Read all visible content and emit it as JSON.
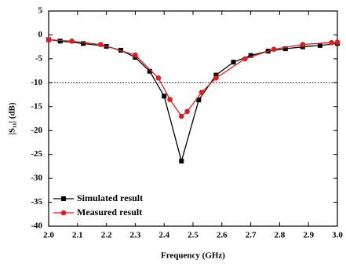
{
  "chart_data": {
    "type": "line",
    "xlabel": "Frequency (GHz)",
    "ylabel": "|S₁₁| (dB)",
    "xlim": [
      2.0,
      3.0
    ],
    "xticks": [
      {
        "value": 2.0,
        "label": "2.0"
      },
      2.1,
      2.2,
      2.3,
      2.4,
      2.5,
      2.6,
      2.7,
      2.8,
      2.9,
      {
        "value": 3.0,
        "label": "3.0"
      }
    ],
    "ylim": [
      -40,
      5
    ],
    "yticks": [
      -40,
      -35,
      -30,
      -25,
      -20,
      -15,
      -10,
      -5,
      0,
      5
    ],
    "reference_line": -10,
    "legend": "lower-left",
    "series": [
      {
        "name": "Simulated result",
        "color": "#000000",
        "marker": "square",
        "x": [
          2.0,
          2.04,
          2.12,
          2.2,
          2.25,
          2.3,
          2.35,
          2.4,
          2.46,
          2.52,
          2.58,
          2.64,
          2.7,
          2.76,
          2.82,
          2.88,
          2.94,
          3.0
        ],
        "values": [
          -1.0,
          -1.3,
          -1.8,
          -2.4,
          -3.2,
          -4.7,
          -7.6,
          -12.8,
          -26.4,
          -13.6,
          -8.4,
          -5.7,
          -4.3,
          -3.4,
          -2.9,
          -2.5,
          -2.2,
          -1.8
        ]
      },
      {
        "name": "Measured result",
        "color": "#e41a1c",
        "marker": "circle",
        "x": [
          2.0,
          2.08,
          2.18,
          2.3,
          2.38,
          2.42,
          2.46,
          2.48,
          2.53,
          2.58,
          2.68,
          2.78,
          2.88,
          2.98,
          3.0
        ],
        "values": [
          -1.0,
          -1.3,
          -2.0,
          -4.2,
          -9.0,
          -13.5,
          -17.0,
          -16.0,
          -12.0,
          -9.0,
          -5.0,
          -3.0,
          -2.0,
          -1.6,
          -1.5
        ]
      }
    ]
  }
}
